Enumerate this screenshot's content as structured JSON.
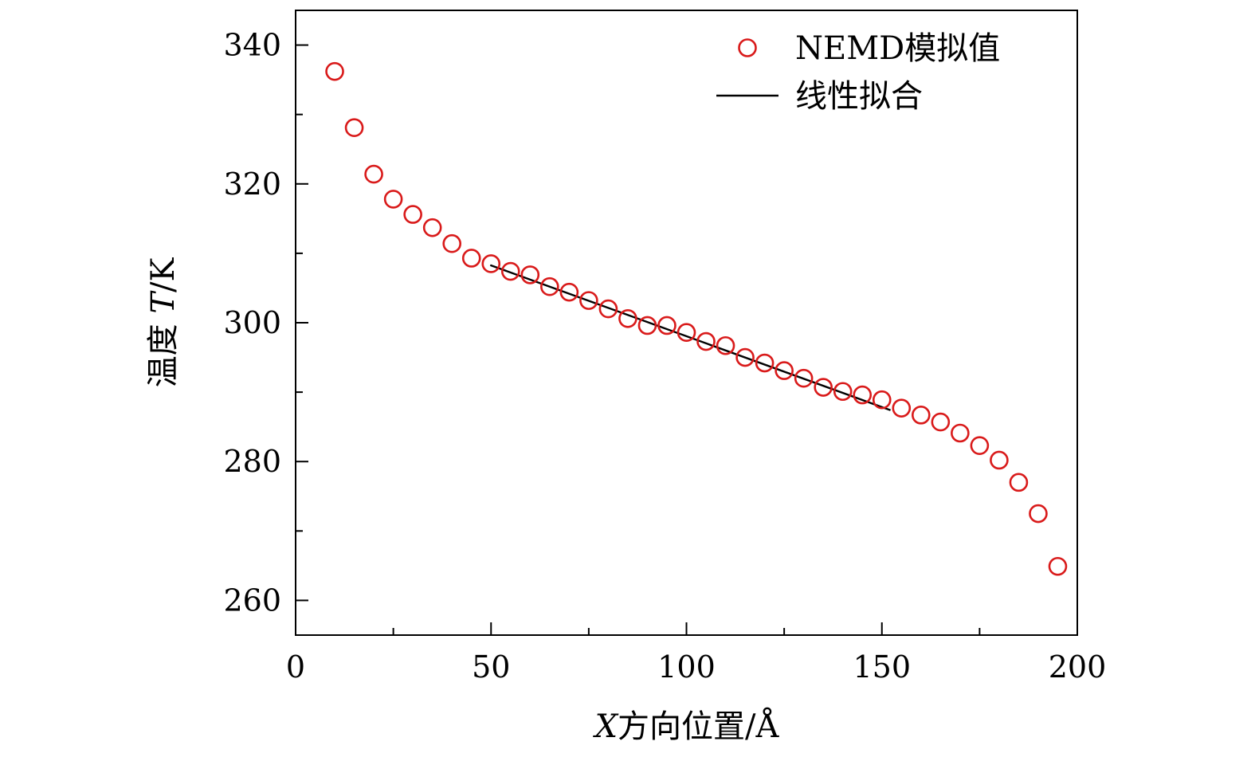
{
  "chart_data": {
    "type": "scatter",
    "title": "",
    "xlabel_var": "X",
    "xlabel_rest": "方向位置/Å",
    "ylabel_prefix": "温度 ",
    "ylabel_var": "T",
    "ylabel_suffix": "/K",
    "xlim": [
      0,
      200
    ],
    "ylim": [
      255,
      345
    ],
    "x_ticks": [
      0,
      50,
      100,
      150,
      200
    ],
    "x_tick_labels": [
      "0",
      "50",
      "100",
      "150",
      "200"
    ],
    "x_minor_ticks": [
      25,
      75,
      125,
      175
    ],
    "y_ticks": [
      260,
      280,
      300,
      320,
      340
    ],
    "y_tick_labels": [
      "260",
      "280",
      "300",
      "320",
      "340"
    ],
    "y_minor_ticks": [
      270,
      290,
      310,
      330
    ],
    "legend_position": "top-right",
    "series": [
      {
        "name": "NEMD模拟值",
        "kind": "scatter",
        "marker": "open-circle",
        "color": "#d91a1a",
        "x": [
          10,
          15,
          20,
          25,
          30,
          35,
          40,
          45,
          50,
          55,
          60,
          65,
          70,
          75,
          80,
          85,
          90,
          95,
          100,
          105,
          110,
          115,
          120,
          125,
          130,
          135,
          140,
          145,
          150,
          155,
          160,
          165,
          170,
          175,
          180,
          185,
          190,
          195
        ],
        "y": [
          336.2,
          328.1,
          321.4,
          317.8,
          315.6,
          313.7,
          311.4,
          309.3,
          308.5,
          307.4,
          306.9,
          305.2,
          304.4,
          303.2,
          302.0,
          300.6,
          299.6,
          299.6,
          298.6,
          297.3,
          296.7,
          295.0,
          294.2,
          293.1,
          292.0,
          290.7,
          290.1,
          289.6,
          288.9,
          287.7,
          286.7,
          285.7,
          284.1,
          282.3,
          280.2,
          277.0,
          272.5,
          264.9
        ]
      },
      {
        "name": "线性拟合",
        "kind": "line",
        "color": "#000000",
        "x": [
          49.8,
          152.2
        ],
        "y": [
          308.3,
          287.4
        ]
      }
    ]
  }
}
